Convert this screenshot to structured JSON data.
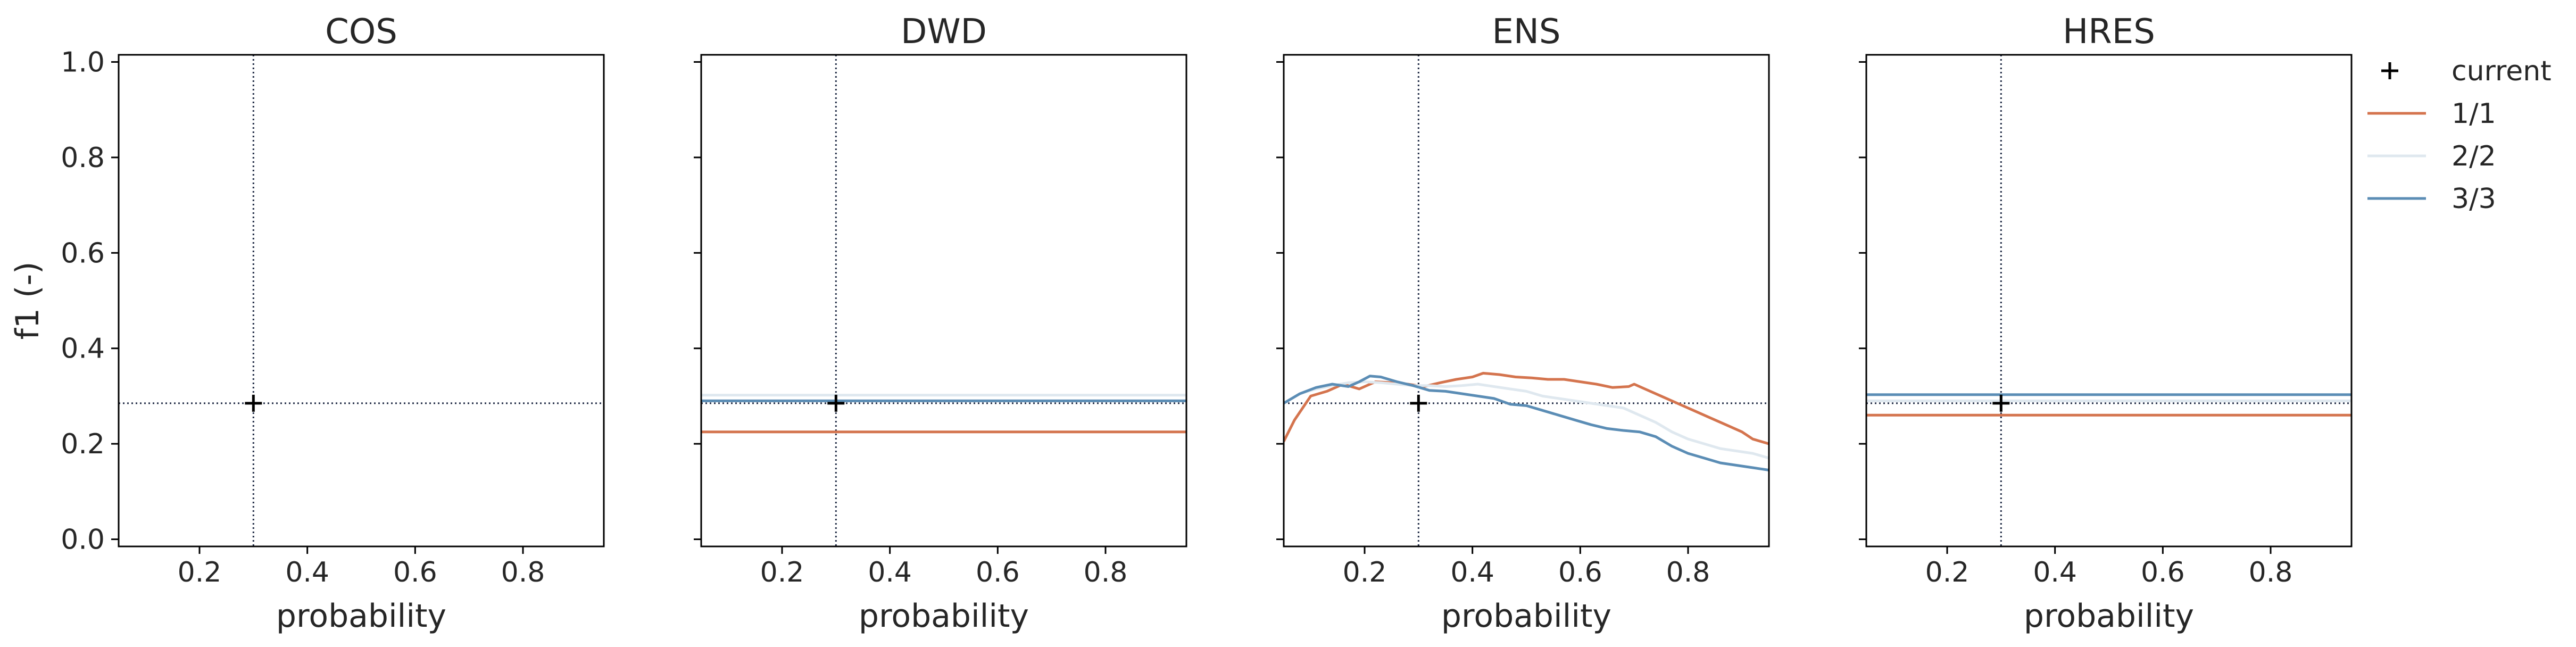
{
  "chart_data": [
    {
      "type": "line",
      "title": "COS",
      "xlabel": "probability",
      "ylabel": "f1 (-)",
      "xlim": [
        0.05,
        0.95
      ],
      "ylim": [
        -0.015,
        1.015
      ],
      "xticks": [
        "0.2",
        "0.4",
        "0.6",
        "0.8"
      ],
      "yticks": [
        "0.0",
        "0.2",
        "0.4",
        "0.6",
        "0.8",
        "1.0"
      ],
      "series": [],
      "current": {
        "x": 0.3,
        "y": 0.285
      }
    },
    {
      "type": "line",
      "title": "DWD",
      "xlabel": "probability",
      "ylabel": "",
      "xlim": [
        0.05,
        0.95
      ],
      "ylim": [
        -0.015,
        1.015
      ],
      "xticks": [
        "0.2",
        "0.4",
        "0.6",
        "0.8"
      ],
      "yticks": [],
      "series": [
        {
          "name": "1/1",
          "x": [
            0.05,
            0.95
          ],
          "values": [
            0.225,
            0.225
          ]
        },
        {
          "name": "2/2",
          "x": [
            0.05,
            0.95
          ],
          "values": [
            0.302,
            0.302
          ]
        },
        {
          "name": "3/3",
          "x": [
            0.05,
            0.95
          ],
          "values": [
            0.29,
            0.29
          ]
        }
      ],
      "current": {
        "x": 0.3,
        "y": 0.285
      }
    },
    {
      "type": "line",
      "title": "ENS",
      "xlabel": "probability",
      "ylabel": "",
      "xlim": [
        0.05,
        0.95
      ],
      "ylim": [
        -0.015,
        1.015
      ],
      "xticks": [
        "0.2",
        "0.4",
        "0.6",
        "0.8"
      ],
      "yticks": [],
      "series": [
        {
          "name": "1/1",
          "x": [
            0.05,
            0.07,
            0.1,
            0.13,
            0.16,
            0.19,
            0.22,
            0.25,
            0.28,
            0.31,
            0.34,
            0.37,
            0.4,
            0.42,
            0.45,
            0.48,
            0.51,
            0.54,
            0.57,
            0.6,
            0.63,
            0.66,
            0.69,
            0.7,
            0.72,
            0.75,
            0.78,
            0.81,
            0.84,
            0.87,
            0.9,
            0.92,
            0.95
          ],
          "values": [
            0.205,
            0.25,
            0.3,
            0.31,
            0.325,
            0.315,
            0.33,
            0.328,
            0.325,
            0.32,
            0.328,
            0.335,
            0.34,
            0.348,
            0.345,
            0.34,
            0.338,
            0.335,
            0.335,
            0.33,
            0.325,
            0.318,
            0.32,
            0.325,
            0.315,
            0.3,
            0.285,
            0.27,
            0.255,
            0.24,
            0.225,
            0.21,
            0.2
          ]
        },
        {
          "name": "2/2",
          "x": [
            0.05,
            0.08,
            0.11,
            0.14,
            0.17,
            0.2,
            0.23,
            0.26,
            0.29,
            0.32,
            0.35,
            0.38,
            0.41,
            0.44,
            0.47,
            0.5,
            0.53,
            0.56,
            0.59,
            0.62,
            0.65,
            0.68,
            0.71,
            0.74,
            0.77,
            0.8,
            0.83,
            0.86,
            0.89,
            0.92,
            0.95
          ],
          "values": [
            0.285,
            0.305,
            0.315,
            0.322,
            0.328,
            0.33,
            0.328,
            0.325,
            0.322,
            0.322,
            0.32,
            0.322,
            0.325,
            0.32,
            0.315,
            0.31,
            0.3,
            0.295,
            0.29,
            0.285,
            0.28,
            0.275,
            0.26,
            0.245,
            0.225,
            0.21,
            0.2,
            0.19,
            0.185,
            0.18,
            0.17
          ]
        },
        {
          "name": "3/3",
          "x": [
            0.05,
            0.08,
            0.11,
            0.14,
            0.17,
            0.19,
            0.21,
            0.23,
            0.26,
            0.29,
            0.32,
            0.35,
            0.38,
            0.41,
            0.44,
            0.47,
            0.5,
            0.53,
            0.56,
            0.59,
            0.62,
            0.65,
            0.68,
            0.71,
            0.74,
            0.77,
            0.8,
            0.83,
            0.86,
            0.89,
            0.92,
            0.95
          ],
          "values": [
            0.285,
            0.305,
            0.318,
            0.325,
            0.32,
            0.33,
            0.342,
            0.34,
            0.33,
            0.322,
            0.312,
            0.31,
            0.305,
            0.3,
            0.295,
            0.283,
            0.28,
            0.27,
            0.26,
            0.25,
            0.24,
            0.232,
            0.228,
            0.225,
            0.215,
            0.195,
            0.18,
            0.17,
            0.16,
            0.155,
            0.15,
            0.145
          ]
        }
      ],
      "current": {
        "x": 0.3,
        "y": 0.285
      }
    },
    {
      "type": "line",
      "title": "HRES",
      "xlabel": "probability",
      "ylabel": "",
      "xlim": [
        0.05,
        0.95
      ],
      "ylim": [
        -0.015,
        1.015
      ],
      "xticks": [
        "0.2",
        "0.4",
        "0.6",
        "0.8"
      ],
      "yticks": [],
      "series": [
        {
          "name": "1/1",
          "x": [
            0.05,
            0.95
          ],
          "values": [
            0.26,
            0.26
          ]
        },
        {
          "name": "2/2",
          "x": [
            0.05,
            0.95
          ],
          "values": [
            0.29,
            0.29
          ]
        },
        {
          "name": "3/3",
          "x": [
            0.05,
            0.95
          ],
          "values": [
            0.303,
            0.303
          ]
        }
      ],
      "current": {
        "x": 0.3,
        "y": 0.285
      }
    }
  ],
  "legend": {
    "placement": "right",
    "items": [
      {
        "label": "current",
        "marker": "plus",
        "color": "#000000"
      },
      {
        "label": "1/1",
        "marker": "line",
        "color": "#d4744e"
      },
      {
        "label": "2/2",
        "marker": "line",
        "color": "#dfe8ef"
      },
      {
        "label": "3/3",
        "marker": "line",
        "color": "#5b8db5"
      }
    ]
  },
  "colors": {
    "1/1": "#d4744e",
    "2/2": "#dfe8ef",
    "3/3": "#5b8db5",
    "reference": "#1f2a44"
  }
}
